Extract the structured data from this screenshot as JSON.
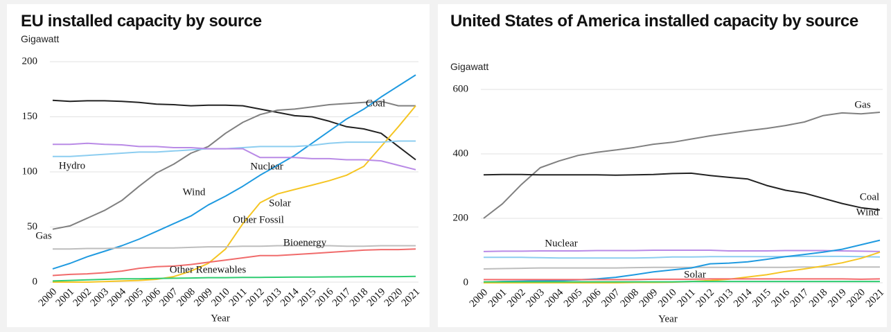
{
  "chart_data": [
    {
      "type": "line",
      "title": "EU installed capacity by source",
      "ylabel": "Gigawatt",
      "xlabel": "Year",
      "categories": [
        "2000",
        "2001",
        "2002",
        "2003",
        "2004",
        "2005",
        "2006",
        "2007",
        "2008",
        "2009",
        "2010",
        "2011",
        "2012",
        "2013",
        "2014",
        "2015",
        "2016",
        "2017",
        "2018",
        "2019",
        "2020",
        "2021"
      ],
      "ylim": [
        0,
        200
      ],
      "yticks": [
        0,
        50,
        100,
        150,
        200
      ],
      "grid": true,
      "series": [
        {
          "name": "Coal",
          "color": "#222222",
          "values": [
            165,
            164,
            164.5,
            164.5,
            164,
            163,
            161.5,
            161,
            160,
            160.5,
            160.5,
            160,
            157,
            154,
            151,
            150,
            146,
            141,
            139,
            135,
            123,
            111
          ]
        },
        {
          "name": "Gas",
          "color": "#808080",
          "values": [
            48,
            51,
            58,
            65,
            74,
            87,
            99,
            107,
            117,
            123,
            135,
            145,
            152,
            156,
            157,
            159,
            161,
            162,
            163,
            164,
            160,
            160
          ]
        },
        {
          "name": "Wind",
          "color": "#1f9ae0",
          "values": [
            12,
            17,
            23,
            28,
            33,
            39,
            46,
            53,
            60,
            70,
            78,
            87,
            97,
            106,
            115,
            126,
            137,
            148,
            157,
            168,
            178,
            188
          ]
        },
        {
          "name": "Solar",
          "color": "#f5c523",
          "values": [
            0,
            0,
            0,
            0.5,
            1,
            1.5,
            2.5,
            5,
            10,
            17,
            30,
            53,
            72,
            80,
            84,
            88,
            92,
            97,
            105,
            123,
            141,
            160
          ]
        },
        {
          "name": "Hydro",
          "color": "#8ccdf0",
          "values": [
            114,
            114,
            115,
            116,
            117,
            118,
            118,
            119,
            120,
            121,
            121,
            122,
            123,
            123,
            123,
            124,
            126,
            127,
            127,
            127,
            128,
            128
          ]
        },
        {
          "name": "Nuclear",
          "color": "#b98ae6",
          "values": [
            125,
            125,
            126,
            125,
            124.5,
            123,
            123,
            122,
            122,
            121,
            121,
            121,
            113,
            113,
            113,
            112,
            112,
            111,
            111,
            110,
            106,
            102
          ]
        },
        {
          "name": "Other Fossil",
          "color": "#bdbdbd",
          "values": [
            30,
            30,
            30.5,
            30.5,
            31,
            31,
            31,
            31,
            31.5,
            32,
            32,
            32.5,
            32.5,
            33,
            33,
            33,
            33,
            32.5,
            32.5,
            33,
            33,
            33
          ]
        },
        {
          "name": "Bioenergy",
          "color": "#f06b6b",
          "values": [
            6,
            7,
            7.5,
            8.5,
            10,
            12.5,
            14,
            14.5,
            16,
            18,
            20,
            22,
            24,
            24,
            25,
            26,
            27,
            28,
            29,
            29.5,
            29.5,
            30
          ]
        },
        {
          "name": "Other Renewables",
          "color": "#2ecc71",
          "values": [
            1,
            1.5,
            2,
            2.5,
            3,
            3,
            3.3,
            3.5,
            3.7,
            4,
            4,
            4.2,
            4.3,
            4.4,
            4.5,
            4.6,
            4.7,
            4.8,
            5,
            5,
            5,
            5.2
          ]
        }
      ]
    },
    {
      "type": "line",
      "title": "United States of America installed capacity by source",
      "ylabel": "Gigawatt",
      "xlabel": "Year",
      "categories": [
        "2000",
        "2001",
        "2002",
        "2003",
        "2004",
        "2005",
        "2006",
        "2007",
        "2008",
        "2009",
        "2010",
        "2011",
        "2012",
        "2013",
        "2014",
        "2015",
        "2016",
        "2017",
        "2018",
        "2019",
        "2020",
        "2021"
      ],
      "ylim": [
        0,
        600
      ],
      "yticks": [
        0,
        200,
        400,
        600
      ],
      "grid": true,
      "series": [
        {
          "name": "Gas",
          "color": "#808080",
          "values": [
            200,
            245,
            305,
            357,
            378,
            395,
            405,
            412,
            420,
            430,
            436,
            446,
            456,
            464,
            472,
            479,
            488,
            499,
            519,
            527,
            524,
            529
          ]
        },
        {
          "name": "Coal",
          "color": "#222222",
          "values": [
            335,
            336,
            336,
            335,
            335,
            335,
            335,
            334,
            335,
            336,
            339,
            340,
            333,
            327,
            322,
            302,
            287,
            278,
            262,
            246,
            233,
            226
          ]
        },
        {
          "name": "Nuclear",
          "color": "#b98ae6",
          "values": [
            97,
            98,
            98,
            99,
            99,
            99,
            100,
            100,
            100,
            101,
            101,
            101,
            101,
            99,
            99,
            99,
            100,
            100,
            100,
            99,
            98,
            97
          ]
        },
        {
          "color": "#8ccdf0",
          "values": [
            79,
            79,
            79,
            78,
            77,
            77,
            77,
            77,
            77,
            78,
            80,
            80,
            81,
            81,
            81,
            81,
            81,
            82,
            82,
            82,
            81,
            80
          ]
        },
        {
          "color": "#bdbdbd",
          "values": [
            43,
            44,
            45,
            46,
            46,
            46,
            46,
            46,
            47,
            48,
            48,
            48,
            48,
            48,
            48,
            48,
            48,
            49,
            49,
            49,
            49,
            49
          ]
        },
        {
          "name": "Wind",
          "color": "#1f9ae0",
          "values": [
            2,
            4,
            5,
            6,
            7,
            9,
            12,
            17,
            25,
            34,
            40,
            46,
            59,
            61,
            65,
            73,
            81,
            88,
            95,
            104,
            118,
            132
          ]
        },
        {
          "name": "Solar",
          "color": "#f5c523",
          "values": [
            0,
            0,
            0,
            0,
            0,
            0,
            0,
            0,
            1,
            1,
            2,
            4,
            7,
            11,
            18,
            25,
            35,
            43,
            52,
            62,
            76,
            95
          ]
        },
        {
          "color": "#f06b6b",
          "values": [
            10,
            10,
            10,
            10,
            10,
            10,
            10,
            10,
            10,
            11,
            11,
            11,
            12,
            12,
            12,
            12,
            12,
            12,
            12,
            12,
            11,
            12
          ]
        },
        {
          "color": "#2ecc71",
          "values": [
            3,
            3,
            3,
            3,
            3,
            3,
            3,
            3,
            3,
            3,
            3,
            4,
            4,
            4,
            4,
            4,
            4,
            4,
            4,
            4,
            4,
            4
          ]
        }
      ]
    }
  ]
}
